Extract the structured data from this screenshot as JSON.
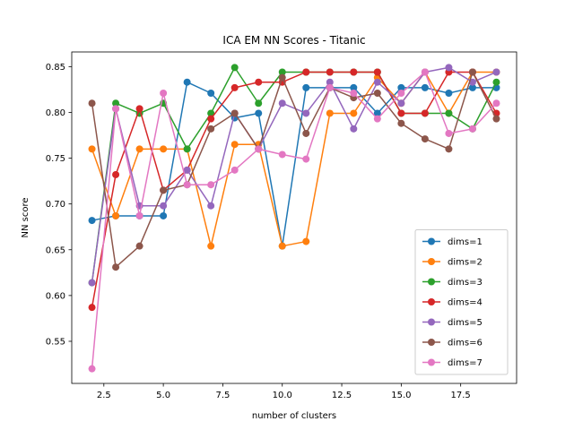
{
  "chart_data": {
    "type": "line",
    "title": "ICA EM NN Scores - Titanic",
    "xlabel": "number of clusters",
    "ylabel": "NN score",
    "xlim": [
      1.15,
      19.85
    ],
    "ylim": [
      0.504,
      0.866
    ],
    "xticks": [
      2.5,
      5.0,
      7.5,
      10.0,
      12.5,
      15.0,
      17.5
    ],
    "xtick_labels": [
      "2.5",
      "5.0",
      "7.5",
      "10.0",
      "12.5",
      "15.0",
      "17.5"
    ],
    "yticks": [
      0.55,
      0.6,
      0.65,
      0.7,
      0.75,
      0.8,
      0.85
    ],
    "ytick_labels": [
      "0.55",
      "0.60",
      "0.65",
      "0.70",
      "0.75",
      "0.80",
      "0.85"
    ],
    "grid": false,
    "legend_position": "lower-right",
    "x": [
      2,
      3,
      4,
      5,
      6,
      7,
      8,
      9,
      10,
      11,
      12,
      13,
      14,
      15,
      16,
      17,
      18,
      19
    ],
    "series": [
      {
        "name": "dims=1",
        "color": "#1f77b4",
        "values": [
          0.682,
          0.687,
          0.687,
          0.687,
          0.833,
          0.821,
          0.794,
          0.799,
          0.654,
          0.827,
          0.827,
          0.827,
          0.799,
          0.827,
          0.827,
          0.821,
          0.827,
          0.827
        ]
      },
      {
        "name": "dims=2",
        "color": "#ff7f0e",
        "values": [
          0.76,
          0.687,
          0.76,
          0.76,
          0.76,
          0.654,
          0.765,
          0.765,
          0.654,
          0.659,
          0.799,
          0.799,
          0.838,
          0.81,
          0.844,
          0.799,
          0.844,
          0.844
        ]
      },
      {
        "name": "dims=3",
        "color": "#2ca02c",
        "values": [
          0.614,
          0.81,
          0.799,
          0.81,
          0.76,
          0.799,
          0.849,
          0.81,
          0.844,
          0.844,
          0.844,
          0.844,
          0.844,
          0.799,
          0.799,
          0.799,
          0.782,
          0.833
        ]
      },
      {
        "name": "dims=4",
        "color": "#d62728",
        "values": [
          0.587,
          0.732,
          0.804,
          0.715,
          0.737,
          0.793,
          0.827,
          0.833,
          0.833,
          0.844,
          0.844,
          0.844,
          0.844,
          0.799,
          0.799,
          0.844,
          0.844,
          0.799
        ]
      },
      {
        "name": "dims=5",
        "color": "#9467bd",
        "values": [
          0.614,
          0.804,
          0.698,
          0.698,
          0.737,
          0.698,
          0.799,
          0.76,
          0.81,
          0.799,
          0.833,
          0.782,
          0.833,
          0.81,
          0.844,
          0.849,
          0.833,
          0.844
        ]
      },
      {
        "name": "dims=6",
        "color": "#8c564b",
        "values": [
          0.81,
          0.631,
          0.654,
          0.715,
          0.721,
          0.782,
          0.799,
          0.76,
          0.838,
          0.777,
          0.827,
          0.816,
          0.821,
          0.788,
          0.771,
          0.76,
          0.844,
          0.793
        ]
      },
      {
        "name": "dims=7",
        "color": "#e377c2",
        "values": [
          0.52,
          0.804,
          0.687,
          0.821,
          0.721,
          0.721,
          0.737,
          0.76,
          0.754,
          0.749,
          0.827,
          0.821,
          0.793,
          0.821,
          0.844,
          0.777,
          0.782,
          0.81
        ]
      }
    ]
  }
}
